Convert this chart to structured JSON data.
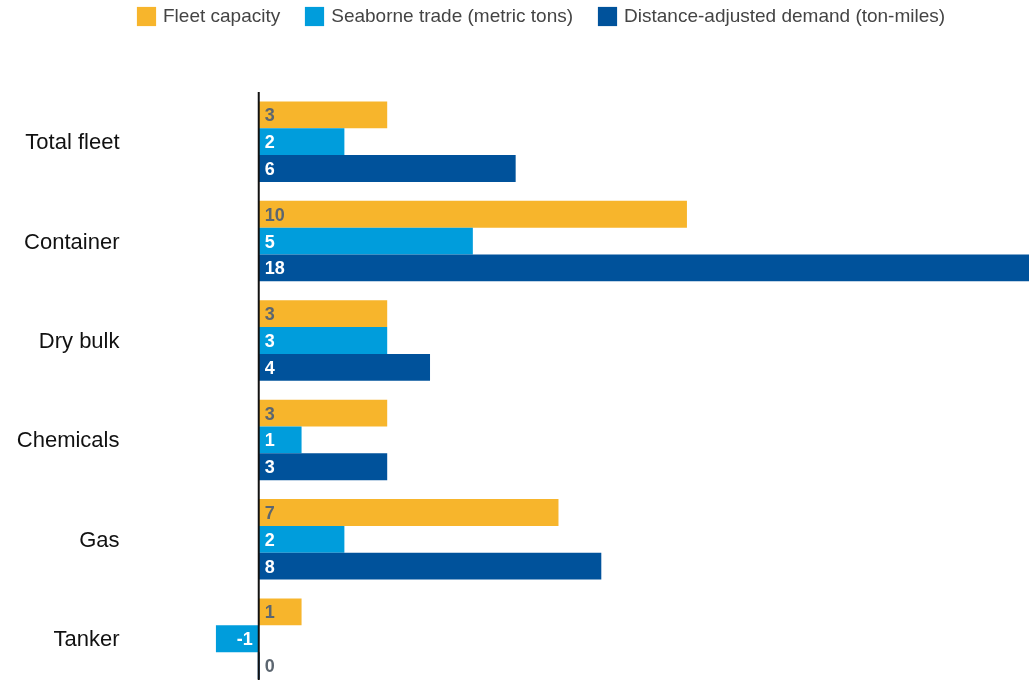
{
  "chart_data": {
    "type": "bar",
    "orientation": "horizontal",
    "categories": [
      "Total fleet",
      "Container",
      "Dry bulk",
      "Chemicals",
      "Gas",
      "Tanker"
    ],
    "series": [
      {
        "name": "Fleet capacity",
        "color": "#f7b52c",
        "values": [
          3,
          10,
          3,
          3,
          7,
          1
        ]
      },
      {
        "name": "Seaborne trade (metric tons)",
        "color": "#009ddc",
        "values": [
          2,
          5,
          3,
          1,
          2,
          -1
        ]
      },
      {
        "name": "Distance-adjusted demand (ton-miles)",
        "color": "#00529b",
        "values": [
          6,
          18,
          4,
          3,
          8,
          0
        ]
      }
    ],
    "data_labels": true,
    "legend": "top",
    "grid": false
  }
}
